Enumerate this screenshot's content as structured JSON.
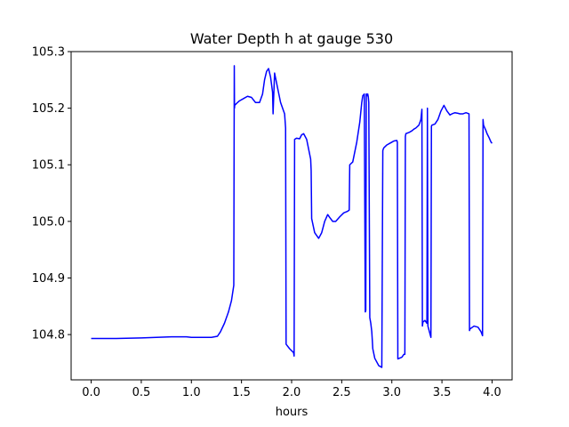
{
  "chart_data": {
    "type": "line",
    "title": "Water Depth h at gauge 530",
    "xlabel": "hours",
    "ylabel": "",
    "xlim": [
      -0.2,
      4.2
    ],
    "ylim": [
      104.72,
      105.3
    ],
    "grid": false,
    "legend": "none",
    "xticks": [
      0.0,
      0.5,
      1.0,
      1.5,
      2.0,
      2.5,
      3.0,
      3.5,
      4.0
    ],
    "xtick_labels": [
      "0.0",
      "0.5",
      "1.0",
      "1.5",
      "2.0",
      "2.5",
      "3.0",
      "3.5",
      "4.0"
    ],
    "yticks": [
      104.8,
      104.9,
      105.0,
      105.1,
      105.2,
      105.3
    ],
    "ytick_labels": [
      "104.8",
      "104.9",
      "105.0",
      "105.1",
      "105.2",
      "105.3"
    ],
    "series": [
      {
        "color": "#0000ff",
        "x": [
          0.0,
          0.25,
          0.5,
          0.65,
          0.8,
          0.95,
          1.0,
          1.1,
          1.2,
          1.26,
          1.29,
          1.33,
          1.37,
          1.4,
          1.423,
          1.428,
          1.43,
          1.432,
          1.46,
          1.48,
          1.52,
          1.56,
          1.6,
          1.64,
          1.68,
          1.71,
          1.73,
          1.75,
          1.77,
          1.79,
          1.81,
          1.815,
          1.83,
          1.86,
          1.89,
          1.93,
          1.94,
          1.945,
          1.98,
          2.02,
          2.025,
          2.03,
          2.05,
          2.08,
          2.1,
          2.12,
          2.15,
          2.19,
          2.195,
          2.2,
          2.23,
          2.27,
          2.3,
          2.33,
          2.36,
          2.38,
          2.41,
          2.44,
          2.48,
          2.52,
          2.56,
          2.575,
          2.58,
          2.61,
          2.65,
          2.68,
          2.7,
          2.71,
          2.725,
          2.735,
          2.74,
          2.745,
          2.75,
          2.755,
          2.76,
          2.765,
          2.77,
          2.78,
          2.79,
          2.8,
          2.805,
          2.81,
          2.83,
          2.87,
          2.9,
          2.91,
          2.915,
          2.92,
          2.95,
          2.98,
          3.0,
          3.02,
          3.05,
          3.055,
          3.06,
          3.1,
          3.12,
          3.13,
          3.135,
          3.14,
          3.17,
          3.2,
          3.22,
          3.24,
          3.27,
          3.29,
          3.3,
          3.305,
          3.31,
          3.33,
          3.35,
          3.355,
          3.36,
          3.39,
          3.395,
          3.4,
          3.43,
          3.46,
          3.49,
          3.52,
          3.55,
          3.58,
          3.6,
          3.63,
          3.66,
          3.68,
          3.71,
          3.74,
          3.77,
          3.775,
          3.78,
          3.82,
          3.86,
          3.89,
          3.905,
          3.91,
          3.915,
          3.94,
          3.95,
          3.97,
          3.99,
          4.0
        ],
        "y": [
          104.793,
          104.793,
          104.794,
          104.795,
          104.796,
          104.796,
          104.795,
          104.795,
          104.795,
          104.797,
          104.805,
          104.82,
          104.84,
          104.86,
          104.887,
          105.275,
          105.2,
          105.205,
          105.21,
          105.213,
          105.217,
          105.221,
          105.219,
          105.21,
          105.21,
          105.225,
          105.25,
          105.265,
          105.27,
          105.255,
          105.228,
          105.19,
          105.262,
          105.236,
          105.21,
          105.19,
          105.165,
          104.783,
          104.775,
          104.768,
          104.762,
          105.145,
          105.147,
          105.146,
          105.153,
          105.155,
          105.145,
          105.11,
          105.09,
          105.005,
          104.98,
          104.97,
          104.98,
          105.0,
          105.012,
          105.007,
          105.0,
          105.0,
          105.008,
          105.015,
          105.018,
          105.02,
          105.1,
          105.105,
          105.14,
          105.175,
          105.21,
          105.222,
          105.225,
          104.84,
          104.842,
          105.225,
          105.225,
          105.222,
          105.225,
          105.22,
          105.21,
          104.83,
          104.82,
          104.805,
          104.79,
          104.775,
          104.758,
          104.745,
          104.742,
          105.125,
          105.128,
          105.13,
          105.135,
          105.138,
          105.14,
          105.142,
          105.143,
          105.14,
          104.757,
          104.76,
          104.765,
          104.765,
          105.15,
          105.155,
          105.157,
          105.16,
          105.163,
          105.165,
          105.17,
          105.18,
          105.198,
          104.815,
          104.822,
          104.825,
          104.82,
          105.2,
          104.815,
          104.795,
          105.168,
          105.17,
          105.172,
          105.18,
          105.195,
          105.205,
          105.195,
          105.188,
          105.19,
          105.192,
          105.191,
          105.19,
          105.19,
          105.192,
          105.19,
          104.807,
          104.81,
          104.815,
          104.813,
          104.805,
          104.798,
          105.18,
          105.17,
          105.16,
          105.155,
          105.148,
          105.14,
          105.138
        ]
      }
    ]
  }
}
